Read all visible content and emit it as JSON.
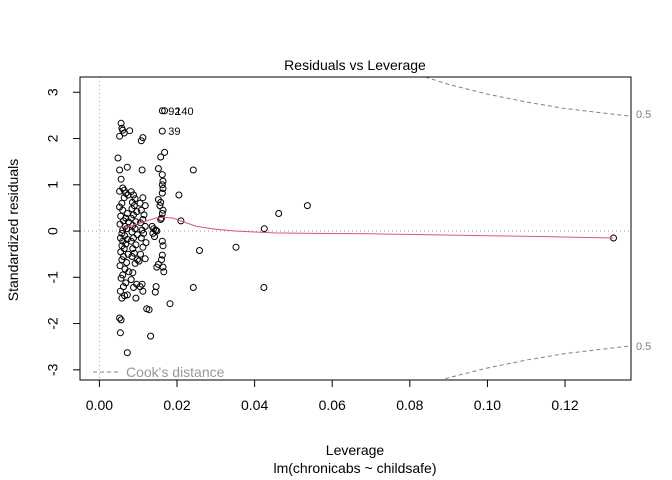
{
  "chart_data": {
    "type": "scatter",
    "title": "Residuals vs Leverage",
    "xlabel": "Leverage",
    "subtitle": "lm(chronicabs ~ childsafe)",
    "ylabel": "Standardized residuals",
    "xlim": [
      -0.005,
      0.137
    ],
    "ylim": [
      -3.22,
      3.33
    ],
    "xticks": [
      0.0,
      0.02,
      0.04,
      0.06,
      0.08,
      0.1,
      0.12
    ],
    "xtick_labels": [
      "0.00",
      "0.02",
      "0.04",
      "0.06",
      "0.08",
      "0.10",
      "0.12"
    ],
    "yticks": [
      -3,
      -2,
      -1,
      0,
      1,
      2,
      3
    ],
    "ytick_labels": [
      "-3",
      "-2",
      "-1",
      "0",
      "1",
      "2",
      "3"
    ],
    "grid": false,
    "legend": {
      "position": "bottom-left",
      "label": "Cook's distance"
    },
    "cook_level_label": "0.5",
    "point_labels": [
      {
        "text": "92",
        "x": 0.0162,
        "y": 2.6
      },
      {
        "text": "140",
        "x": 0.0162,
        "y": 2.6
      },
      {
        "text": "39",
        "x": 0.0162,
        "y": 2.16
      }
    ],
    "colors": {
      "points": "#000000",
      "smooth": "#DF536B",
      "cook": "#808080",
      "reference": "#999999"
    },
    "points": [
      [
        0.0056,
        2.33
      ],
      [
        0.006,
        2.18
      ],
      [
        0.0052,
        2.05
      ],
      [
        0.0064,
        2.12
      ],
      [
        0.0078,
        2.17
      ],
      [
        0.0058,
        2.22
      ],
      [
        0.0048,
        1.58
      ],
      [
        0.0052,
        1.32
      ],
      [
        0.0072,
        1.38
      ],
      [
        0.0056,
        1.12
      ],
      [
        0.006,
        0.93
      ],
      [
        0.0064,
        0.88
      ],
      [
        0.0068,
        0.82
      ],
      [
        0.0052,
        0.86
      ],
      [
        0.0074,
        0.78
      ],
      [
        0.0064,
        0.72
      ],
      [
        0.0058,
        0.6
      ],
      [
        0.0052,
        0.52
      ],
      [
        0.006,
        0.45
      ],
      [
        0.0072,
        0.38
      ],
      [
        0.0055,
        0.32
      ],
      [
        0.0068,
        0.28
      ],
      [
        0.0062,
        0.22
      ],
      [
        0.0075,
        0.2
      ],
      [
        0.0053,
        0.15
      ],
      [
        0.0066,
        0.1
      ],
      [
        0.007,
        0.05
      ],
      [
        0.006,
        0.02
      ],
      [
        0.0058,
        -0.05
      ],
      [
        0.0065,
        -0.1
      ],
      [
        0.0054,
        -0.15
      ],
      [
        0.0072,
        -0.18
      ],
      [
        0.006,
        -0.22
      ],
      [
        0.0068,
        -0.28
      ],
      [
        0.0058,
        -0.32
      ],
      [
        0.0064,
        -0.38
      ],
      [
        0.0055,
        -0.45
      ],
      [
        0.0074,
        -0.5
      ],
      [
        0.0062,
        -0.55
      ],
      [
        0.0058,
        -0.62
      ],
      [
        0.007,
        -0.68
      ],
      [
        0.0053,
        -0.75
      ],
      [
        0.0066,
        -0.82
      ],
      [
        0.0076,
        -0.88
      ],
      [
        0.006,
        -0.95
      ],
      [
        0.0056,
        -1.02
      ],
      [
        0.0068,
        -1.12
      ],
      [
        0.0062,
        -1.2
      ],
      [
        0.0054,
        -1.3
      ],
      [
        0.0072,
        -1.38
      ],
      [
        0.0058,
        -1.45
      ],
      [
        0.0065,
        -1.4
      ],
      [
        0.0056,
        -1.92
      ],
      [
        0.0052,
        -1.88
      ],
      [
        0.0054,
        -2.2
      ],
      [
        0.0072,
        -2.63
      ],
      [
        0.0082,
        0.85
      ],
      [
        0.0088,
        0.78
      ],
      [
        0.0092,
        0.7
      ],
      [
        0.0085,
        0.62
      ],
      [
        0.009,
        0.55
      ],
      [
        0.0084,
        0.48
      ],
      [
        0.0096,
        0.42
      ],
      [
        0.0088,
        0.35
      ],
      [
        0.0082,
        0.28
      ],
      [
        0.0094,
        0.2
      ],
      [
        0.0086,
        0.12
      ],
      [
        0.0092,
        0.05
      ],
      [
        0.0084,
        -0.02
      ],
      [
        0.0098,
        -0.08
      ],
      [
        0.0088,
        -0.15
      ],
      [
        0.0082,
        -0.22
      ],
      [
        0.0094,
        -0.3
      ],
      [
        0.0086,
        -0.38
      ],
      [
        0.009,
        -0.48
      ],
      [
        0.0084,
        -0.55
      ],
      [
        0.0098,
        -0.62
      ],
      [
        0.0092,
        -0.7
      ],
      [
        0.0086,
        -0.9
      ],
      [
        0.0082,
        -1.05
      ],
      [
        0.0096,
        -1.15
      ],
      [
        0.0088,
        -1.22
      ],
      [
        0.0094,
        -1.45
      ],
      [
        0.0102,
        -0.65
      ],
      [
        0.0108,
        1.95
      ],
      [
        0.0112,
        2.02
      ],
      [
        0.011,
        1.32
      ],
      [
        0.0112,
        0.72
      ],
      [
        0.0105,
        0.6
      ],
      [
        0.0118,
        0.55
      ],
      [
        0.0108,
        0.45
      ],
      [
        0.0115,
        0.35
      ],
      [
        0.0112,
        0.25
      ],
      [
        0.0106,
        0.18
      ],
      [
        0.0118,
        0.1
      ],
      [
        0.011,
        0.02
      ],
      [
        0.0114,
        -0.05
      ],
      [
        0.0108,
        -0.15
      ],
      [
        0.012,
        -0.25
      ],
      [
        0.0112,
        -0.35
      ],
      [
        0.0106,
        -0.5
      ],
      [
        0.0118,
        -0.6
      ],
      [
        0.011,
        -1.15
      ],
      [
        0.0105,
        -1.2
      ],
      [
        0.0112,
        -1.3
      ],
      [
        0.0128,
        -1.7
      ],
      [
        0.0122,
        -1.68
      ],
      [
        0.0132,
        -2.27
      ],
      [
        0.0136,
        0.1
      ],
      [
        0.014,
        0.05
      ],
      [
        0.0145,
        0.02
      ],
      [
        0.0138,
        -0.05
      ],
      [
        0.0142,
        -0.12
      ],
      [
        0.0148,
        -0.78
      ],
      [
        0.0152,
        -0.72
      ],
      [
        0.0146,
        -1.2
      ],
      [
        0.0144,
        -1.32
      ],
      [
        0.0158,
        1.6
      ],
      [
        0.0152,
        1.35
      ],
      [
        0.0162,
        1.22
      ],
      [
        0.0164,
        1.08
      ],
      [
        0.0162,
        1.0
      ],
      [
        0.0164,
        0.92
      ],
      [
        0.0162,
        0.82
      ],
      [
        0.0158,
        0.62
      ],
      [
        0.0164,
        0.45
      ],
      [
        0.0162,
        0.38
      ],
      [
        0.016,
        0.28
      ],
      [
        0.0158,
        0.25
      ],
      [
        0.0162,
        -0.22
      ],
      [
        0.0164,
        -0.32
      ],
      [
        0.0162,
        -0.52
      ],
      [
        0.016,
        -0.62
      ],
      [
        0.0164,
        -0.78
      ],
      [
        0.0166,
        -0.88
      ],
      [
        0.0168,
        1.7
      ],
      [
        0.0162,
        2.6
      ],
      [
        0.0168,
        2.6
      ],
      [
        0.0162,
        2.16
      ],
      [
        0.0152,
        0.68
      ],
      [
        0.0156,
        0.55
      ],
      [
        0.0148,
        0.0
      ],
      [
        0.0182,
        -1.57
      ],
      [
        0.0205,
        0.78
      ],
      [
        0.021,
        0.22
      ],
      [
        0.0242,
        1.32
      ],
      [
        0.0242,
        -1.22
      ],
      [
        0.0258,
        -0.42
      ],
      [
        0.0352,
        -0.35
      ],
      [
        0.0425,
        0.05
      ],
      [
        0.0424,
        -1.22
      ],
      [
        0.0462,
        0.38
      ],
      [
        0.0536,
        0.55
      ],
      [
        0.1325,
        -0.15
      ]
    ],
    "smooth_line": [
      [
        0.0052,
        0.08
      ],
      [
        0.007,
        0.08
      ],
      [
        0.009,
        0.13
      ],
      [
        0.0115,
        0.2
      ],
      [
        0.0145,
        0.28
      ],
      [
        0.0165,
        0.3
      ],
      [
        0.019,
        0.28
      ],
      [
        0.021,
        0.22
      ],
      [
        0.023,
        0.16
      ],
      [
        0.025,
        0.1
      ],
      [
        0.03,
        0.04
      ],
      [
        0.035,
        0.0
      ],
      [
        0.04,
        -0.02
      ],
      [
        0.045,
        -0.04
      ],
      [
        0.055,
        -0.05
      ],
      [
        0.07,
        -0.06
      ],
      [
        0.085,
        -0.08
      ],
      [
        0.1,
        -0.1
      ],
      [
        0.115,
        -0.12
      ],
      [
        0.1325,
        -0.15
      ]
    ],
    "cook_upper": [
      [
        0.084,
        3.33
      ],
      [
        0.09,
        3.17
      ],
      [
        0.1,
        2.96
      ],
      [
        0.11,
        2.79
      ],
      [
        0.12,
        2.65
      ],
      [
        0.13,
        2.55
      ],
      [
        0.137,
        2.48
      ]
    ],
    "cook_lower": [
      [
        0.084,
        -3.33
      ],
      [
        0.09,
        -3.17
      ],
      [
        0.1,
        -2.96
      ],
      [
        0.11,
        -2.79
      ],
      [
        0.12,
        -2.65
      ],
      [
        0.13,
        -2.55
      ],
      [
        0.137,
        -2.48
      ]
    ]
  }
}
